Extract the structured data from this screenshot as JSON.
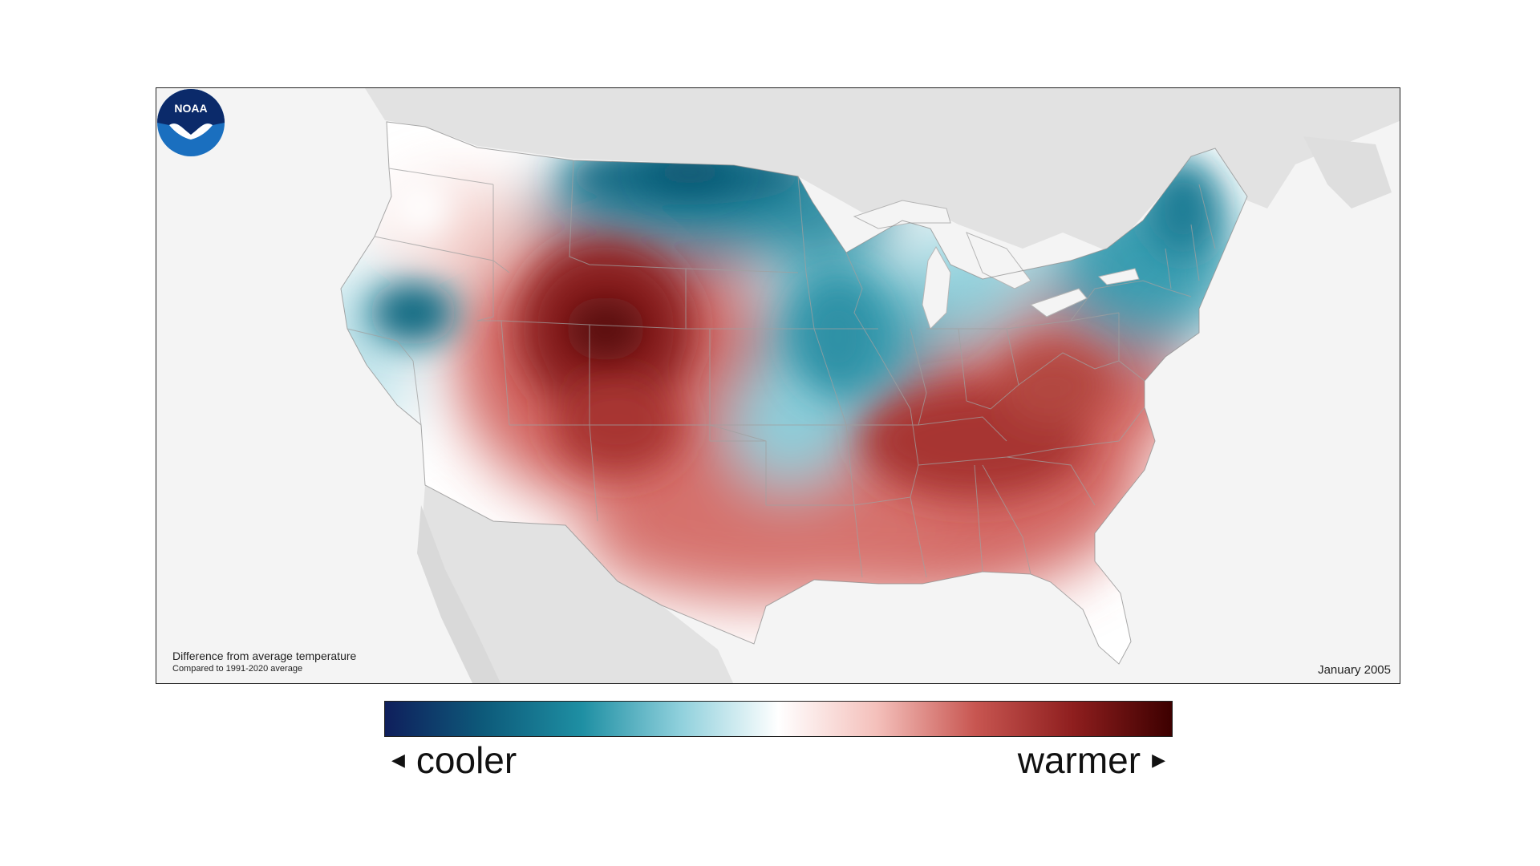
{
  "map": {
    "caption_title": "Difference from average temperature",
    "caption_subtitle": "Compared to 1991-2020 average",
    "date": "January 2005",
    "logo_text": "NOAA",
    "colors": {
      "land_background": "#e2e2e2",
      "ocean": "#f4f4f4",
      "state_border": "#9a9a9a",
      "cool_strong": "#0c5e78",
      "cool_mid": "#3fa0b4",
      "cool_light": "#b7e2ea",
      "neutral": "#ffffff",
      "warm_light": "#f2c2bd",
      "warm_mid": "#d0605c",
      "warm_strong": "#6e1214"
    },
    "regions": [
      {
        "name": "northern-plains",
        "anomaly": "cooler"
      },
      {
        "name": "northeast",
        "anomaly": "cooler"
      },
      {
        "name": "nevada-california",
        "anomaly": "cooler"
      },
      {
        "name": "central-plains",
        "anomaly": "cooler"
      },
      {
        "name": "rocky-mountains",
        "anomaly": "warmer"
      },
      {
        "name": "south",
        "anomaly": "warmer"
      },
      {
        "name": "ohio-valley",
        "anomaly": "warmer"
      }
    ]
  },
  "legend": {
    "cooler_label": "cooler",
    "warmer_label": "warmer",
    "gradient": [
      "#0f1f5c",
      "#0d5a7a",
      "#1e8fa3",
      "#8fd0dc",
      "#ffffff",
      "#f4c0bb",
      "#c85651",
      "#8e1e1e",
      "#3d0000"
    ]
  }
}
